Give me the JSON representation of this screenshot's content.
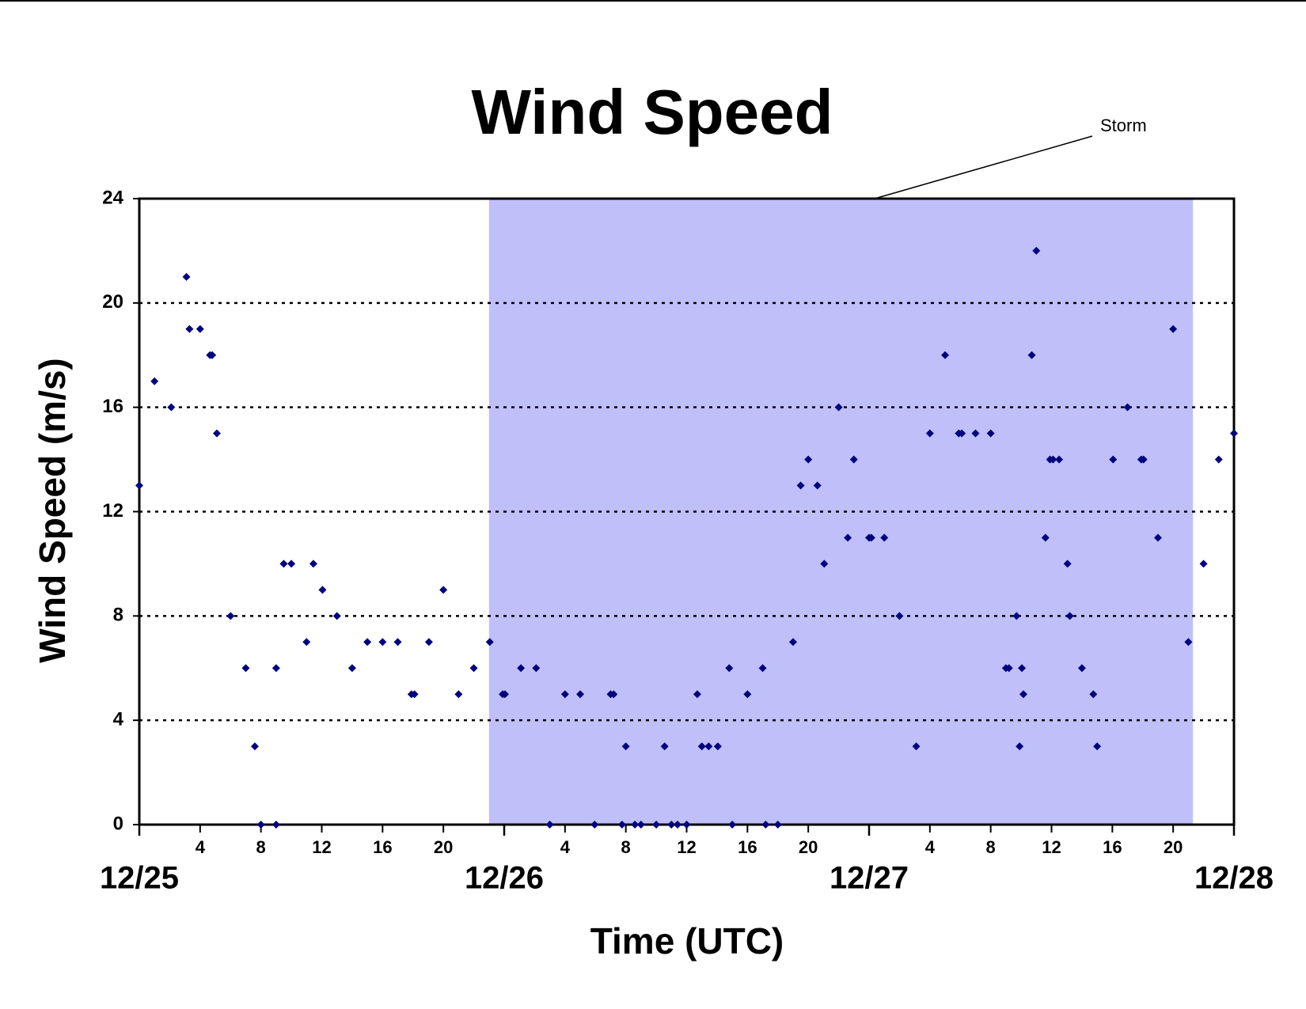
{
  "chart_data": {
    "type": "scatter",
    "title": "Wind Speed",
    "xlabel": "Time (UTC)",
    "ylabel": "Wind Speed (m/s)",
    "xlim": [
      0,
      72
    ],
    "ylim": [
      0,
      24
    ],
    "yticks": [
      0,
      4,
      8,
      12,
      16,
      20,
      24
    ],
    "xticks": [
      4,
      8,
      12,
      16,
      20,
      {
        "value": 28,
        "label": "4"
      },
      {
        "value": 32,
        "label": "8"
      },
      {
        "value": 36,
        "label": "12"
      },
      {
        "value": 40,
        "label": "16"
      },
      {
        "value": 44,
        "label": "20"
      },
      {
        "value": 52,
        "label": "4"
      },
      {
        "value": 56,
        "label": "8"
      },
      {
        "value": 60,
        "label": "12"
      },
      {
        "value": 64,
        "label": "16"
      },
      {
        "value": 68,
        "label": "20"
      }
    ],
    "xticks_major": [
      {
        "value": 0,
        "label": "12/25"
      },
      {
        "value": 24,
        "label": "12/26"
      },
      {
        "value": 48,
        "label": "12/27"
      },
      {
        "value": 72,
        "label": "12/28"
      }
    ],
    "grid": true,
    "storm": {
      "label": "Storm",
      "x": [
        23,
        69.3
      ],
      "color": "#bfbffa"
    },
    "series": [
      {
        "color": "#00007f",
        "x": [
          0,
          1,
          2.1,
          3.1,
          3.3,
          4,
          4.65,
          4.8,
          5.1,
          6,
          7,
          7.6,
          8,
          9,
          9,
          9.5,
          10,
          11,
          11.45,
          12.05,
          13,
          14,
          15,
          16,
          17,
          17.9,
          18.1,
          19.05,
          20,
          21,
          22,
          23.05,
          23.9,
          24.05,
          25.1,
          26.1,
          27,
          28,
          29,
          29.95,
          31,
          31.2,
          31.75,
          32,
          32.6,
          33,
          34,
          34.55,
          35,
          35.4,
          36,
          36.7,
          37,
          37.45,
          38.05,
          38.8,
          39,
          40,
          41,
          41.2,
          42,
          43,
          43.5,
          44,
          44.6,
          45.05,
          46,
          46.6,
          47,
          48,
          48.15,
          49,
          50,
          51.1,
          52,
          53,
          53.9,
          54.1,
          55,
          56,
          57,
          57.2,
          57.7,
          57.9,
          58.05,
          58.15,
          58.7,
          59,
          59.6,
          59.9,
          60.1,
          60.5,
          61.05,
          61.2,
          62,
          62.75,
          63,
          64.05,
          65,
          65.9,
          66.05,
          67,
          68,
          69,
          70,
          71,
          72
        ],
        "values": [
          13,
          17,
          16,
          21,
          19,
          19,
          18,
          18,
          15,
          8,
          6,
          3,
          0,
          0,
          6,
          10,
          10,
          7,
          10,
          9,
          8,
          6,
          7,
          7,
          7,
          5,
          5,
          7,
          9,
          5,
          6,
          7,
          5,
          5,
          6,
          6,
          0,
          5,
          5,
          0,
          5,
          5,
          0,
          3,
          0,
          0,
          0,
          3,
          0,
          0,
          0,
          5,
          3,
          3,
          3,
          6,
          0,
          5,
          6,
          0,
          0,
          7,
          13,
          14,
          13,
          10,
          16,
          11,
          14,
          11,
          11,
          11,
          8,
          3,
          15,
          18,
          15,
          15,
          15,
          15,
          6,
          6,
          8,
          3,
          6,
          5,
          18,
          22,
          11,
          14,
          14,
          14,
          10,
          8,
          6,
          5,
          3,
          14,
          16,
          14,
          14,
          11,
          19,
          7,
          10,
          14,
          15
        ]
      }
    ]
  }
}
